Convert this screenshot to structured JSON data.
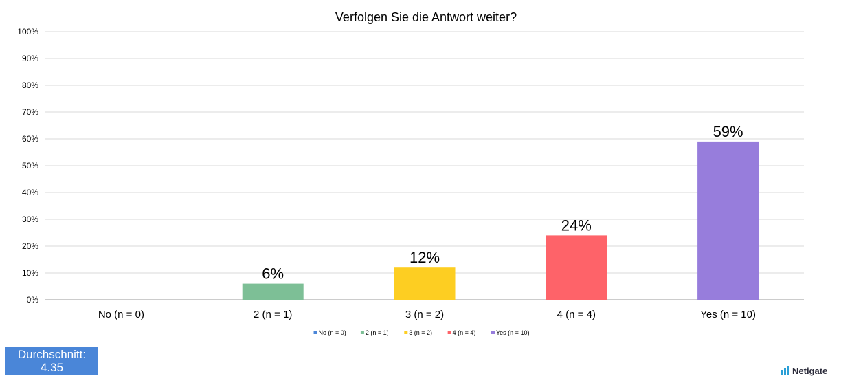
{
  "chart_data": {
    "type": "bar",
    "title": "Verfolgen Sie die Antwort weiter?",
    "categories": [
      "No (n = 0)",
      "2 (n = 1)",
      "3 (n = 2)",
      "4 (n = 4)",
      "Yes (n = 10)"
    ],
    "values": [
      0,
      6,
      12,
      24,
      59
    ],
    "data_labels": [
      "",
      "6%",
      "12%",
      "24%",
      "59%"
    ],
    "colors": [
      "#4a86d8",
      "#7dbf96",
      "#fdce22",
      "#fe6369",
      "#977ddc"
    ],
    "ylim": [
      0,
      100
    ],
    "y_ticks": [
      "0%",
      "10%",
      "20%",
      "30%",
      "40%",
      "50%",
      "60%",
      "70%",
      "80%",
      "90%",
      "100%"
    ],
    "xlabel": "",
    "ylabel": "",
    "grid": true,
    "legend_position": "bottom",
    "legend": [
      "No (n = 0)",
      "2 (n = 1)",
      "3 (n = 2)",
      "4 (n = 4)",
      "Yes (n = 10)"
    ]
  },
  "summary": {
    "label": "Durchschnitt:",
    "value": "4.35"
  },
  "brand": {
    "name": "Netigate",
    "icon": "bar-logo-icon",
    "color": "#2a9fd6"
  }
}
